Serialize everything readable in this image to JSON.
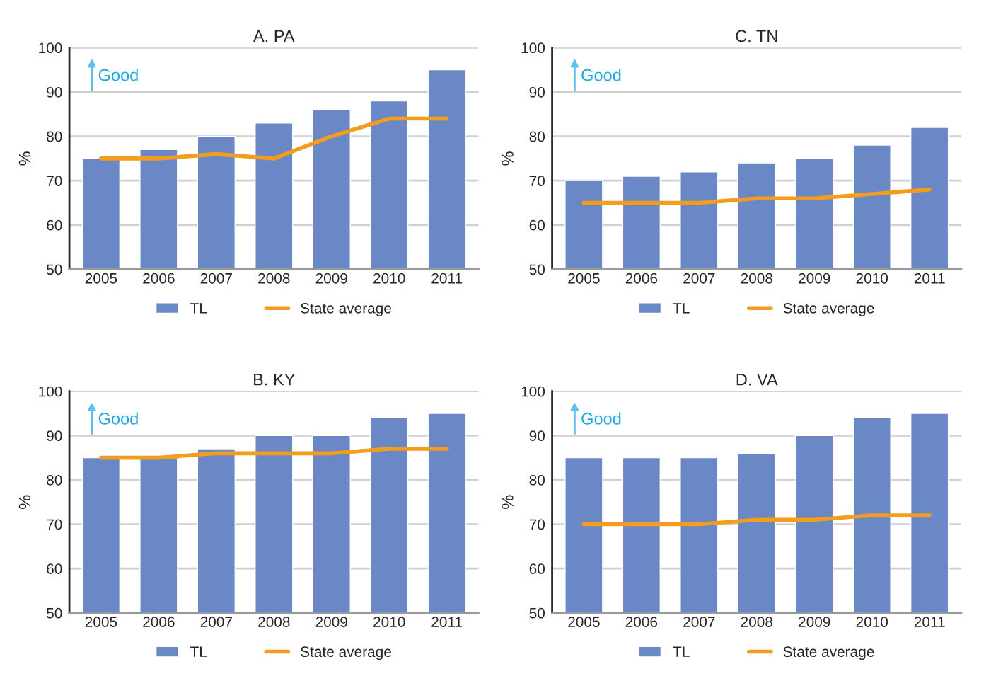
{
  "chart_data": [
    {
      "type": "bar",
      "title": "A. PA",
      "ylabel": "%",
      "categories": [
        "2005",
        "2006",
        "2007",
        "2008",
        "2009",
        "2010",
        "2011"
      ],
      "ylim": [
        50,
        100
      ],
      "yticks": [
        50,
        60,
        70,
        80,
        90,
        100
      ],
      "grid": "y",
      "legend": "bottom",
      "annotations": [
        "Good"
      ],
      "series": [
        {
          "name": "TL",
          "color": "#6a87c6",
          "values": [
            75,
            77,
            80,
            83,
            86,
            88,
            95
          ]
        },
        {
          "name": "State average",
          "type": "line",
          "color": "#f39c1e",
          "values": [
            75,
            75,
            76,
            75,
            80,
            84,
            84
          ]
        }
      ]
    },
    {
      "type": "bar",
      "title": "C. TN",
      "ylabel": "%",
      "categories": [
        "2005",
        "2006",
        "2007",
        "2008",
        "2009",
        "2010",
        "2011"
      ],
      "ylim": [
        50,
        100
      ],
      "yticks": [
        50,
        60,
        70,
        80,
        90,
        100
      ],
      "grid": "y",
      "legend": "bottom",
      "annotations": [
        "Good"
      ],
      "series": [
        {
          "name": "TL",
          "color": "#6a87c6",
          "values": [
            70,
            71,
            72,
            74,
            75,
            78,
            82
          ]
        },
        {
          "name": "State average",
          "type": "line",
          "color": "#f39c1e",
          "values": [
            65,
            65,
            65,
            66,
            66,
            67,
            68
          ]
        }
      ]
    },
    {
      "type": "bar",
      "title": "B. KY",
      "ylabel": "%",
      "categories": [
        "2005",
        "2006",
        "2007",
        "2008",
        "2009",
        "2010",
        "2011"
      ],
      "ylim": [
        50,
        100
      ],
      "yticks": [
        50,
        60,
        70,
        80,
        90,
        100
      ],
      "grid": "y",
      "legend": "bottom",
      "annotations": [
        "Good"
      ],
      "series": [
        {
          "name": "TL",
          "color": "#6a87c6",
          "values": [
            85,
            85,
            87,
            90,
            90,
            94,
            95
          ]
        },
        {
          "name": "State average",
          "type": "line",
          "color": "#f39c1e",
          "values": [
            85,
            85,
            86,
            86,
            86,
            87,
            87
          ]
        }
      ]
    },
    {
      "type": "bar",
      "title": "D. VA",
      "ylabel": "%",
      "categories": [
        "2005",
        "2006",
        "2007",
        "2008",
        "2009",
        "2010",
        "2011"
      ],
      "ylim": [
        50,
        100
      ],
      "yticks": [
        50,
        60,
        70,
        80,
        90,
        100
      ],
      "grid": "y",
      "legend": "bottom",
      "annotations": [
        "Good"
      ],
      "series": [
        {
          "name": "TL",
          "color": "#6a87c6",
          "values": [
            85,
            85,
            85,
            86,
            90,
            94,
            95
          ]
        },
        {
          "name": "State average",
          "type": "line",
          "color": "#f39c1e",
          "values": [
            70,
            70,
            70,
            71,
            71,
            72,
            72
          ]
        }
      ]
    }
  ]
}
